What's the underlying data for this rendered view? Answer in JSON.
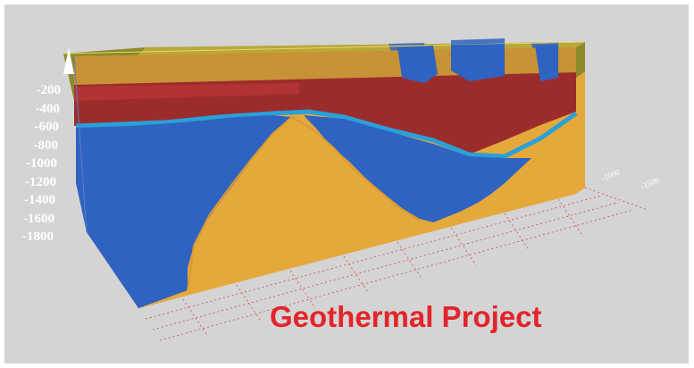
{
  "title": "Geothermal Project",
  "depth_axis": {
    "labels": [
      "-200",
      "-400",
      "-600",
      "-800",
      "-1000",
      "-1200",
      "-1400",
      "-1600",
      "-1800"
    ]
  },
  "horizontal_axis": {
    "labels": [
      "-1000",
      "-1500"
    ]
  },
  "colors": {
    "background": "#d4d4d4",
    "title": "#e3242b",
    "resistive_zone": "#e5a83a",
    "conductive_zone": "#2f63c2",
    "cap_layer": "#9c2c2c",
    "transition": "#2aa0d8",
    "grid": "#d84a4a"
  },
  "icons": {
    "axis_arrow": "up-arrow-icon"
  }
}
